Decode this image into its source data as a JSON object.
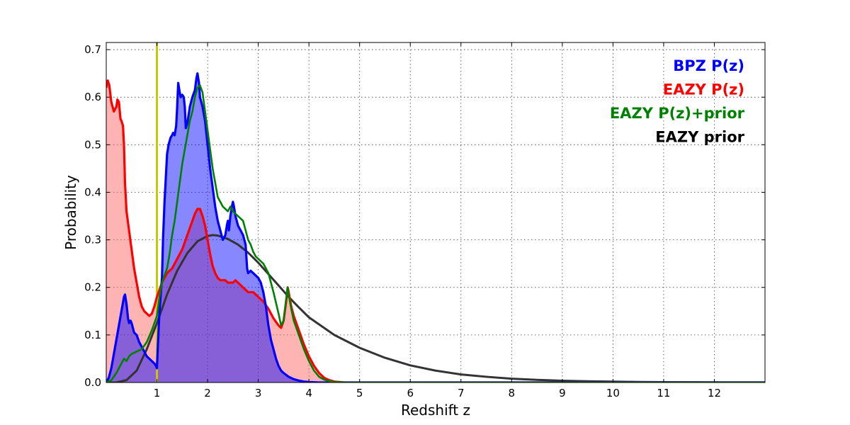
{
  "chart_data": {
    "type": "area",
    "xlabel": "Redshift z",
    "ylabel": "Probability",
    "xlim": [
      0.0,
      13.0
    ],
    "ylim": [
      0.0,
      0.715
    ],
    "grid": true,
    "legend_position": "top-right",
    "x_ticks": [
      1,
      2,
      3,
      4,
      5,
      6,
      7,
      8,
      9,
      10,
      11,
      12
    ],
    "y_ticks": [
      0.0,
      0.1,
      0.2,
      0.3,
      0.4,
      0.5,
      0.6,
      0.7
    ],
    "x_tick_labels": [
      "1",
      "2",
      "3",
      "4",
      "5",
      "6",
      "7",
      "8",
      "9",
      "10",
      "11",
      "12"
    ],
    "y_tick_labels": [
      "0.0",
      "0.1",
      "0.2",
      "0.3",
      "0.4",
      "0.5",
      "0.6",
      "0.7"
    ],
    "reference_line": {
      "x": 1.0,
      "color": "#c8c800"
    },
    "series": [
      {
        "name": "BPZ P(z)",
        "color": "#0000ff",
        "fill_color": "#0000ff",
        "filled": true,
        "points": [
          [
            0.0,
            0.0
          ],
          [
            0.05,
            0.01
          ],
          [
            0.1,
            0.03
          ],
          [
            0.15,
            0.06
          ],
          [
            0.2,
            0.09
          ],
          [
            0.25,
            0.12
          ],
          [
            0.3,
            0.15
          ],
          [
            0.35,
            0.18
          ],
          [
            0.37,
            0.185
          ],
          [
            0.4,
            0.165
          ],
          [
            0.43,
            0.135
          ],
          [
            0.45,
            0.125
          ],
          [
            0.48,
            0.13
          ],
          [
            0.5,
            0.125
          ],
          [
            0.55,
            0.105
          ],
          [
            0.6,
            0.1
          ],
          [
            0.65,
            0.085
          ],
          [
            0.7,
            0.075
          ],
          [
            0.75,
            0.065
          ],
          [
            0.8,
            0.055
          ],
          [
            0.85,
            0.05
          ],
          [
            0.9,
            0.045
          ],
          [
            0.95,
            0.04
          ],
          [
            0.98,
            0.035
          ],
          [
            1.0,
            0.03
          ],
          [
            1.02,
            0.08
          ],
          [
            1.05,
            0.15
          ],
          [
            1.1,
            0.22
          ],
          [
            1.12,
            0.3
          ],
          [
            1.15,
            0.38
          ],
          [
            1.18,
            0.44
          ],
          [
            1.2,
            0.48
          ],
          [
            1.23,
            0.5
          ],
          [
            1.27,
            0.515
          ],
          [
            1.3,
            0.52
          ],
          [
            1.32,
            0.525
          ],
          [
            1.35,
            0.52
          ],
          [
            1.38,
            0.54
          ],
          [
            1.4,
            0.58
          ],
          [
            1.42,
            0.63
          ],
          [
            1.45,
            0.61
          ],
          [
            1.47,
            0.6
          ],
          [
            1.5,
            0.605
          ],
          [
            1.53,
            0.6
          ],
          [
            1.55,
            0.58
          ],
          [
            1.57,
            0.535
          ],
          [
            1.6,
            0.545
          ],
          [
            1.65,
            0.58
          ],
          [
            1.7,
            0.6
          ],
          [
            1.75,
            0.615
          ],
          [
            1.78,
            0.64
          ],
          [
            1.8,
            0.65
          ],
          [
            1.83,
            0.63
          ],
          [
            1.85,
            0.6
          ],
          [
            1.9,
            0.58
          ],
          [
            1.95,
            0.55
          ],
          [
            2.0,
            0.5
          ],
          [
            2.05,
            0.45
          ],
          [
            2.1,
            0.41
          ],
          [
            2.15,
            0.37
          ],
          [
            2.2,
            0.34
          ],
          [
            2.25,
            0.32
          ],
          [
            2.3,
            0.3
          ],
          [
            2.35,
            0.31
          ],
          [
            2.38,
            0.33
          ],
          [
            2.4,
            0.34
          ],
          [
            2.42,
            0.32
          ],
          [
            2.45,
            0.35
          ],
          [
            2.48,
            0.37
          ],
          [
            2.5,
            0.38
          ],
          [
            2.52,
            0.37
          ],
          [
            2.55,
            0.35
          ],
          [
            2.6,
            0.33
          ],
          [
            2.65,
            0.32
          ],
          [
            2.7,
            0.31
          ],
          [
            2.75,
            0.29
          ],
          [
            2.78,
            0.24
          ],
          [
            2.8,
            0.23
          ],
          [
            2.85,
            0.235
          ],
          [
            2.9,
            0.23
          ],
          [
            2.95,
            0.225
          ],
          [
            3.0,
            0.22
          ],
          [
            3.05,
            0.21
          ],
          [
            3.1,
            0.19
          ],
          [
            3.15,
            0.16
          ],
          [
            3.2,
            0.12
          ],
          [
            3.25,
            0.09
          ],
          [
            3.3,
            0.07
          ],
          [
            3.35,
            0.05
          ],
          [
            3.4,
            0.035
          ],
          [
            3.45,
            0.025
          ],
          [
            3.5,
            0.02
          ],
          [
            3.6,
            0.012
          ],
          [
            3.7,
            0.007
          ],
          [
            3.8,
            0.004
          ],
          [
            3.9,
            0.002
          ],
          [
            4.0,
            0.001
          ],
          [
            4.2,
            0.0
          ],
          [
            13.0,
            0.0
          ]
        ]
      },
      {
        "name": "EAZY P(z)",
        "color": "#ff0000",
        "fill_color": "#ff6060",
        "filled": true,
        "points": [
          [
            0.0,
            0.62
          ],
          [
            0.03,
            0.635
          ],
          [
            0.06,
            0.625
          ],
          [
            0.1,
            0.59
          ],
          [
            0.15,
            0.57
          ],
          [
            0.2,
            0.58
          ],
          [
            0.22,
            0.595
          ],
          [
            0.25,
            0.59
          ],
          [
            0.28,
            0.555
          ],
          [
            0.3,
            0.55
          ],
          [
            0.33,
            0.54
          ],
          [
            0.35,
            0.5
          ],
          [
            0.37,
            0.42
          ],
          [
            0.4,
            0.36
          ],
          [
            0.45,
            0.32
          ],
          [
            0.5,
            0.28
          ],
          [
            0.55,
            0.24
          ],
          [
            0.6,
            0.21
          ],
          [
            0.65,
            0.18
          ],
          [
            0.7,
            0.16
          ],
          [
            0.75,
            0.15
          ],
          [
            0.8,
            0.145
          ],
          [
            0.85,
            0.14
          ],
          [
            0.9,
            0.145
          ],
          [
            0.95,
            0.16
          ],
          [
            1.0,
            0.18
          ],
          [
            1.05,
            0.195
          ],
          [
            1.1,
            0.21
          ],
          [
            1.15,
            0.22
          ],
          [
            1.2,
            0.23
          ],
          [
            1.3,
            0.24
          ],
          [
            1.4,
            0.26
          ],
          [
            1.5,
            0.28
          ],
          [
            1.6,
            0.31
          ],
          [
            1.7,
            0.34
          ],
          [
            1.75,
            0.355
          ],
          [
            1.8,
            0.365
          ],
          [
            1.85,
            0.365
          ],
          [
            1.9,
            0.35
          ],
          [
            1.95,
            0.33
          ],
          [
            2.0,
            0.3
          ],
          [
            2.05,
            0.27
          ],
          [
            2.1,
            0.245
          ],
          [
            2.15,
            0.23
          ],
          [
            2.2,
            0.22
          ],
          [
            2.25,
            0.215
          ],
          [
            2.3,
            0.215
          ],
          [
            2.35,
            0.215
          ],
          [
            2.4,
            0.21
          ],
          [
            2.45,
            0.21
          ],
          [
            2.5,
            0.21
          ],
          [
            2.55,
            0.215
          ],
          [
            2.6,
            0.21
          ],
          [
            2.65,
            0.205
          ],
          [
            2.7,
            0.2
          ],
          [
            2.75,
            0.195
          ],
          [
            2.8,
            0.19
          ],
          [
            2.85,
            0.19
          ],
          [
            2.9,
            0.19
          ],
          [
            2.95,
            0.185
          ],
          [
            3.0,
            0.18
          ],
          [
            3.1,
            0.17
          ],
          [
            3.2,
            0.155
          ],
          [
            3.3,
            0.135
          ],
          [
            3.4,
            0.12
          ],
          [
            3.45,
            0.115
          ],
          [
            3.5,
            0.13
          ],
          [
            3.55,
            0.17
          ],
          [
            3.58,
            0.2
          ],
          [
            3.6,
            0.19
          ],
          [
            3.65,
            0.16
          ],
          [
            3.7,
            0.14
          ],
          [
            3.8,
            0.11
          ],
          [
            3.9,
            0.08
          ],
          [
            4.0,
            0.055
          ],
          [
            4.1,
            0.035
          ],
          [
            4.2,
            0.02
          ],
          [
            4.3,
            0.01
          ],
          [
            4.4,
            0.005
          ],
          [
            4.5,
            0.002
          ],
          [
            4.7,
            0.0
          ],
          [
            13.0,
            0.0
          ]
        ]
      },
      {
        "name": "EAZY P(z)+prior",
        "color": "#008000",
        "filled": false,
        "points": [
          [
            0.0,
            0.0
          ],
          [
            0.1,
            0.005
          ],
          [
            0.2,
            0.02
          ],
          [
            0.3,
            0.04
          ],
          [
            0.35,
            0.05
          ],
          [
            0.4,
            0.045
          ],
          [
            0.45,
            0.055
          ],
          [
            0.5,
            0.06
          ],
          [
            0.6,
            0.065
          ],
          [
            0.7,
            0.07
          ],
          [
            0.8,
            0.085
          ],
          [
            0.9,
            0.11
          ],
          [
            1.0,
            0.14
          ],
          [
            1.05,
            0.18
          ],
          [
            1.1,
            0.21
          ],
          [
            1.15,
            0.225
          ],
          [
            1.2,
            0.24
          ],
          [
            1.25,
            0.27
          ],
          [
            1.3,
            0.31
          ],
          [
            1.35,
            0.34
          ],
          [
            1.4,
            0.38
          ],
          [
            1.45,
            0.42
          ],
          [
            1.5,
            0.46
          ],
          [
            1.55,
            0.49
          ],
          [
            1.6,
            0.52
          ],
          [
            1.65,
            0.55
          ],
          [
            1.7,
            0.57
          ],
          [
            1.75,
            0.6
          ],
          [
            1.8,
            0.62
          ],
          [
            1.85,
            0.625
          ],
          [
            1.9,
            0.61
          ],
          [
            1.95,
            0.57
          ],
          [
            2.0,
            0.53
          ],
          [
            2.05,
            0.49
          ],
          [
            2.1,
            0.45
          ],
          [
            2.15,
            0.42
          ],
          [
            2.2,
            0.39
          ],
          [
            2.25,
            0.38
          ],
          [
            2.3,
            0.37
          ],
          [
            2.35,
            0.365
          ],
          [
            2.4,
            0.36
          ],
          [
            2.45,
            0.37
          ],
          [
            2.5,
            0.36
          ],
          [
            2.55,
            0.355
          ],
          [
            2.6,
            0.35
          ],
          [
            2.65,
            0.345
          ],
          [
            2.7,
            0.34
          ],
          [
            2.75,
            0.32
          ],
          [
            2.8,
            0.3
          ],
          [
            2.85,
            0.29
          ],
          [
            2.9,
            0.275
          ],
          [
            2.95,
            0.265
          ],
          [
            3.0,
            0.26
          ],
          [
            3.1,
            0.25
          ],
          [
            3.2,
            0.23
          ],
          [
            3.3,
            0.19
          ],
          [
            3.4,
            0.145
          ],
          [
            3.45,
            0.12
          ],
          [
            3.5,
            0.13
          ],
          [
            3.55,
            0.175
          ],
          [
            3.58,
            0.2
          ],
          [
            3.6,
            0.185
          ],
          [
            3.65,
            0.155
          ],
          [
            3.7,
            0.13
          ],
          [
            3.8,
            0.1
          ],
          [
            3.9,
            0.07
          ],
          [
            4.0,
            0.045
          ],
          [
            4.1,
            0.025
          ],
          [
            4.2,
            0.012
          ],
          [
            4.3,
            0.006
          ],
          [
            4.4,
            0.003
          ],
          [
            4.5,
            0.001
          ],
          [
            4.7,
            0.0
          ],
          [
            13.0,
            0.0
          ]
        ]
      },
      {
        "name": "EAZY prior",
        "color": "#333333",
        "filled": false,
        "points": [
          [
            0.0,
            0.0
          ],
          [
            0.2,
            0.0
          ],
          [
            0.4,
            0.005
          ],
          [
            0.6,
            0.025
          ],
          [
            0.8,
            0.07
          ],
          [
            1.0,
            0.125
          ],
          [
            1.2,
            0.185
          ],
          [
            1.4,
            0.235
          ],
          [
            1.6,
            0.272
          ],
          [
            1.8,
            0.297
          ],
          [
            2.0,
            0.308
          ],
          [
            2.1,
            0.31
          ],
          [
            2.2,
            0.309
          ],
          [
            2.4,
            0.302
          ],
          [
            2.6,
            0.29
          ],
          [
            2.8,
            0.273
          ],
          [
            3.0,
            0.252
          ],
          [
            3.2,
            0.228
          ],
          [
            3.4,
            0.204
          ],
          [
            3.6,
            0.18
          ],
          [
            3.8,
            0.158
          ],
          [
            4.0,
            0.137
          ],
          [
            4.5,
            0.1
          ],
          [
            5.0,
            0.073
          ],
          [
            5.5,
            0.052
          ],
          [
            6.0,
            0.036
          ],
          [
            6.5,
            0.025
          ],
          [
            7.0,
            0.017
          ],
          [
            7.5,
            0.012
          ],
          [
            8.0,
            0.008
          ],
          [
            8.5,
            0.0055
          ],
          [
            9.0,
            0.0038
          ],
          [
            9.5,
            0.0026
          ],
          [
            10.0,
            0.0018
          ],
          [
            10.5,
            0.0012
          ],
          [
            11.0,
            0.0008
          ],
          [
            11.5,
            0.0005
          ],
          [
            12.0,
            0.0003
          ],
          [
            12.5,
            0.0002
          ],
          [
            13.0,
            0.0001
          ]
        ]
      }
    ],
    "legend_entries": [
      {
        "label": "BPZ P(z)",
        "color": "#0000ff"
      },
      {
        "label": "EAZY P(z)",
        "color": "#ff0000"
      },
      {
        "label": "EAZY P(z)+prior",
        "color": "#008000"
      },
      {
        "label": "EAZY prior",
        "color": "#000000"
      }
    ]
  }
}
